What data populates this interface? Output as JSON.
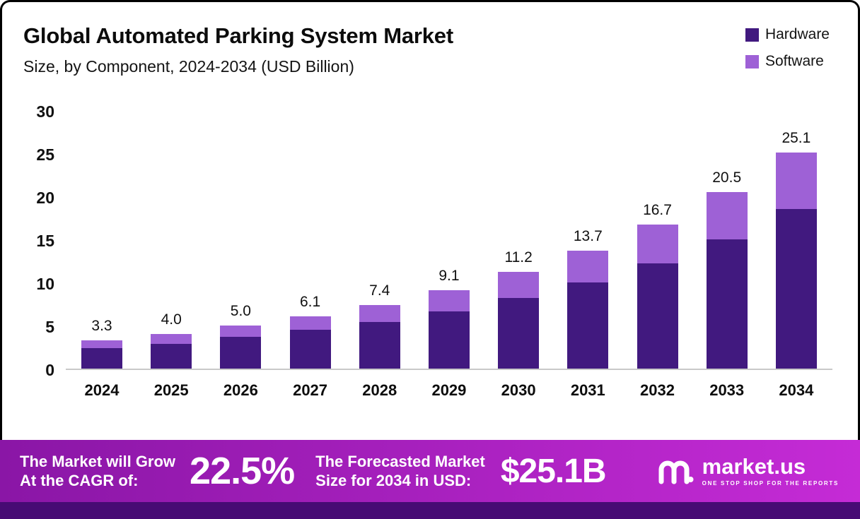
{
  "header": {
    "title": "Global Automated Parking System Market",
    "subtitle": "Size, by Component, 2024-2034 (USD Billion)"
  },
  "legend": [
    {
      "label": "Hardware",
      "color": "#41197f"
    },
    {
      "label": "Software",
      "color": "#9e61d6"
    }
  ],
  "chart_data": {
    "type": "bar",
    "stacked": true,
    "title": "Global Automated Parking System Market Size, by Component, 2024-2034 (USD Billion)",
    "categories": [
      "2024",
      "2025",
      "2026",
      "2027",
      "2028",
      "2029",
      "2030",
      "2031",
      "2032",
      "2033",
      "2034"
    ],
    "series": [
      {
        "name": "Hardware",
        "color": "#41197f",
        "values": [
          2.4,
          2.9,
          3.7,
          4.5,
          5.4,
          6.6,
          8.2,
          10.0,
          12.2,
          15.0,
          18.5
        ]
      },
      {
        "name": "Software",
        "color": "#9e61d6",
        "values": [
          0.9,
          1.1,
          1.3,
          1.6,
          2.0,
          2.5,
          3.0,
          3.7,
          4.5,
          5.5,
          6.6
        ]
      }
    ],
    "totals": [
      3.3,
      4.0,
      5.0,
      6.1,
      7.4,
      9.1,
      11.2,
      13.7,
      16.7,
      20.5,
      25.1
    ],
    "total_labels": [
      "3.3",
      "4.0",
      "5.0",
      "6.1",
      "7.4",
      "9.1",
      "11.2",
      "13.7",
      "16.7",
      "20.5",
      "25.1"
    ],
    "xlabel": "",
    "ylabel": "",
    "ylim": [
      0,
      30
    ],
    "yticks": [
      0,
      5,
      10,
      15,
      20,
      25,
      30
    ],
    "grid": false,
    "legend_position": "top-right"
  },
  "footer": {
    "cagr_label_line1": "The Market will Grow",
    "cagr_label_line2": "At the CAGR of:",
    "cagr_value": "22.5%",
    "forecast_label_line1": "The Forecasted Market",
    "forecast_label_line2": "Size for 2034 in USD:",
    "forecast_value": "$25.1B",
    "brand": "market.us",
    "brand_tagline": "ONE STOP SHOP FOR THE REPORTS"
  },
  "theme": {
    "hardware_color": "#41197f",
    "software_color": "#9e61d6",
    "banner_gradient_start": "#8a16a6",
    "banner_gradient_end": "#c52bd6",
    "strip_color": "#470b74",
    "axis_line_color": "#c9c9c9"
  }
}
